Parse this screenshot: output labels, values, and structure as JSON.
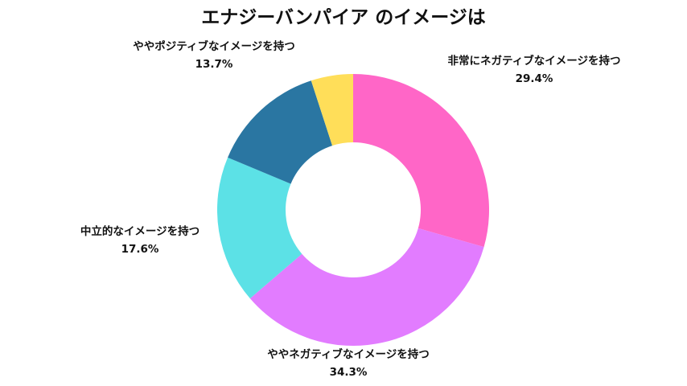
{
  "chart_data": {
    "type": "pie",
    "title": "エナジーバンパイア のイメージは",
    "donut": true,
    "slices": [
      {
        "label": "非常にネガティブなイメージを持つ",
        "value": 29.4,
        "value_label": "29.4%",
        "color": "#ff66c7"
      },
      {
        "label": "ややネガティブなイメージを持つ",
        "value": 34.3,
        "value_label": "34.3%",
        "color": "#e27cff"
      },
      {
        "label": "中立的なイメージを持つ",
        "value": 17.6,
        "value_label": "17.6%",
        "color": "#5ce1e6"
      },
      {
        "label": "ややポジティブなイメージを持つ",
        "value": 13.7,
        "value_label": "13.7%",
        "color": "#2a76a2"
      },
      {
        "label": "",
        "value": 5.0,
        "value_label": "",
        "color": "#ffde59"
      }
    ]
  }
}
